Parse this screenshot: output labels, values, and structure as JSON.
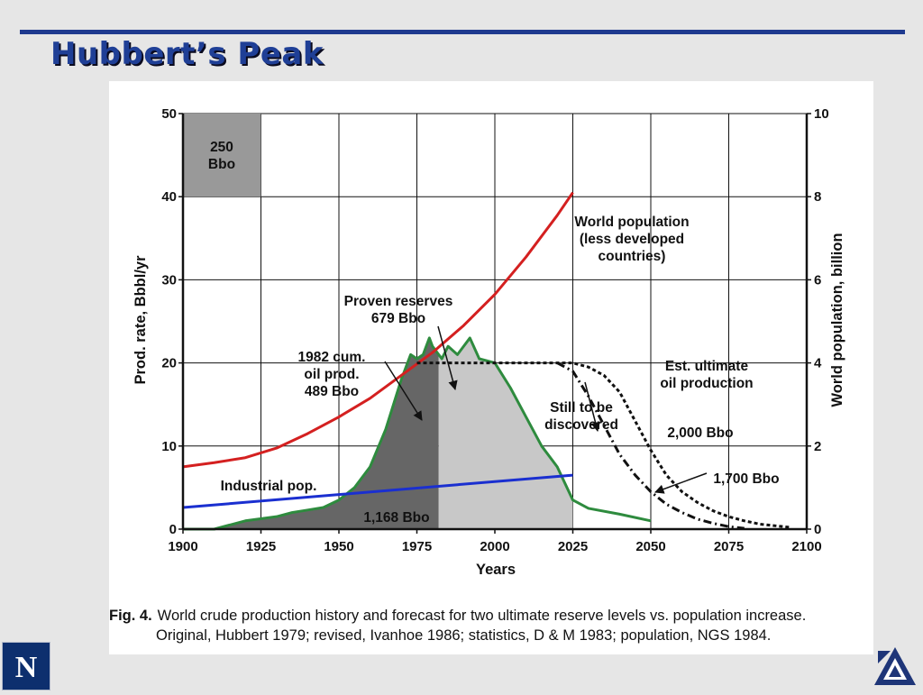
{
  "slide": {
    "title": "Hubbert’s Peak"
  },
  "logos": {
    "left": "N",
    "right": "triangle-logo"
  },
  "caption": {
    "fig_label": "Fig. 4.",
    "line1": "World crude production history and forecast for two ultimate reserve levels vs. population increase.",
    "line2": "Original, Hubbert 1979; revised, Ivanhoe 1986; statistics, D & M 1983; population, NGS 1984."
  },
  "chart_data": {
    "type": "area",
    "xlabel": "Years",
    "ylabel": "Prod. rate, Bbbl/yr",
    "y2label": "World population, billion",
    "xlim": [
      1900,
      2100
    ],
    "ylim": [
      0,
      50
    ],
    "y2lim": [
      0,
      10
    ],
    "grid": true,
    "x_ticks": [
      "1900",
      "1925",
      "1950",
      "1975",
      "2000",
      "2025",
      "2050",
      "2075",
      "2100"
    ],
    "y_ticks": [
      "0",
      "10",
      "20",
      "30",
      "40",
      "50"
    ],
    "y2_ticks": [
      "0",
      "2",
      "4",
      "6",
      "8",
      "10"
    ],
    "series": [
      {
        "name": "production",
        "color": "#2e8b3e",
        "x": [
          1900,
          1910,
          1920,
          1930,
          1935,
          1940,
          1945,
          1950,
          1955,
          1960,
          1965,
          1970,
          1973,
          1975,
          1977,
          1979,
          1980,
          1982,
          1983,
          1985,
          1988,
          1990,
          1992,
          1995,
          2000,
          2005,
          2010,
          2015,
          2020,
          2025,
          2030,
          2040,
          2050
        ],
        "y": [
          0,
          0,
          1,
          1.5,
          2,
          2.3,
          2.6,
          3.5,
          5,
          7.5,
          12,
          18,
          21,
          20.5,
          21,
          23,
          22,
          21,
          20.5,
          22,
          21,
          22,
          23,
          20.5,
          20,
          17,
          13.5,
          10,
          7.5,
          3.5,
          2.5,
          1.8,
          1
        ]
      },
      {
        "name": "World population (less developed countries)",
        "axis": "right",
        "color": "#d42020",
        "x": [
          1900,
          1910,
          1920,
          1930,
          1940,
          1950,
          1960,
          1970,
          1980,
          1990,
          2000,
          2010,
          2020,
          2025
        ],
        "y": [
          1.5,
          1.6,
          1.72,
          1.95,
          2.3,
          2.7,
          3.15,
          3.7,
          4.25,
          4.9,
          5.65,
          6.55,
          7.55,
          8.1
        ]
      },
      {
        "name": "Industrial pop.",
        "axis": "right",
        "color": "#1a2fd0",
        "x": [
          1900,
          2025
        ],
        "y": [
          0.52,
          1.3
        ]
      },
      {
        "name": "Est. ultimate oil production 2,000 Bbo",
        "style": "dashed",
        "x": [
          1975,
          2025,
          2030,
          2035,
          2040,
          2045,
          2050,
          2055,
          2060,
          2065,
          2070,
          2075,
          2080,
          2085,
          2090,
          2095
        ],
        "y": [
          20,
          20,
          19.5,
          18.5,
          16.5,
          13,
          9.5,
          6.5,
          4.5,
          3.2,
          2.2,
          1.5,
          1,
          0.6,
          0.4,
          0.2
        ]
      },
      {
        "name": "1,700 Bbo",
        "style": "dash-dot",
        "x": [
          2020,
          2025,
          2030,
          2035,
          2040,
          2045,
          2050,
          2055,
          2060,
          2065,
          2070,
          2075,
          2080
        ],
        "y": [
          20,
          19,
          16,
          12.5,
          9,
          6.5,
          4.5,
          3,
          2,
          1.2,
          0.7,
          0.3,
          0.1
        ]
      }
    ],
    "shaded_regions": {
      "cumulative_produced_to_year": 1982,
      "proven_reserves_to_year": 2025,
      "box_250_bbo": {
        "x": [
          1900,
          1925
        ],
        "y": [
          40,
          50
        ]
      }
    },
    "annotations": {
      "box_250_line1": "250",
      "box_250_line2": "Bbo",
      "world_pop_line1": "World population",
      "world_pop_line2": "(less developed",
      "world_pop_line3": "countries)",
      "proven_line1": "Proven reserves",
      "proven_line2": "679 Bbo",
      "cum_line1": "1982 cum.",
      "cum_line2": "oil prod.",
      "cum_line3": "489 Bbo",
      "still_line1": "Still to be",
      "still_line2": "discovered",
      "est_line1": "Est. ultimate",
      "est_line2": "oil production",
      "bbo_2000": "2,000 Bbo",
      "bbo_1700": "1,700 Bbo",
      "industrial_pop": "Industrial pop.",
      "total_1168": "1,168 Bbo"
    }
  }
}
